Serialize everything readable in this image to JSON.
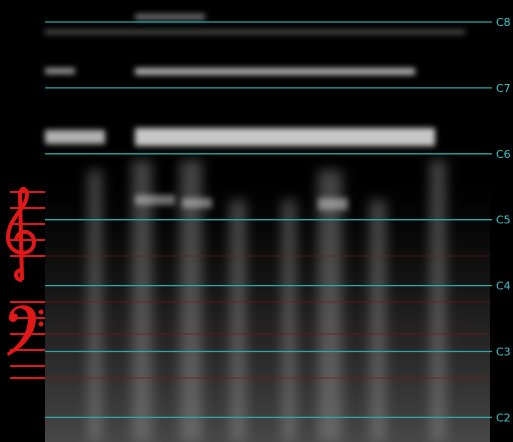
{
  "octave_labels": [
    "C8",
    "C7",
    "C6",
    "C5",
    "C4",
    "C3",
    "C2"
  ]
}
